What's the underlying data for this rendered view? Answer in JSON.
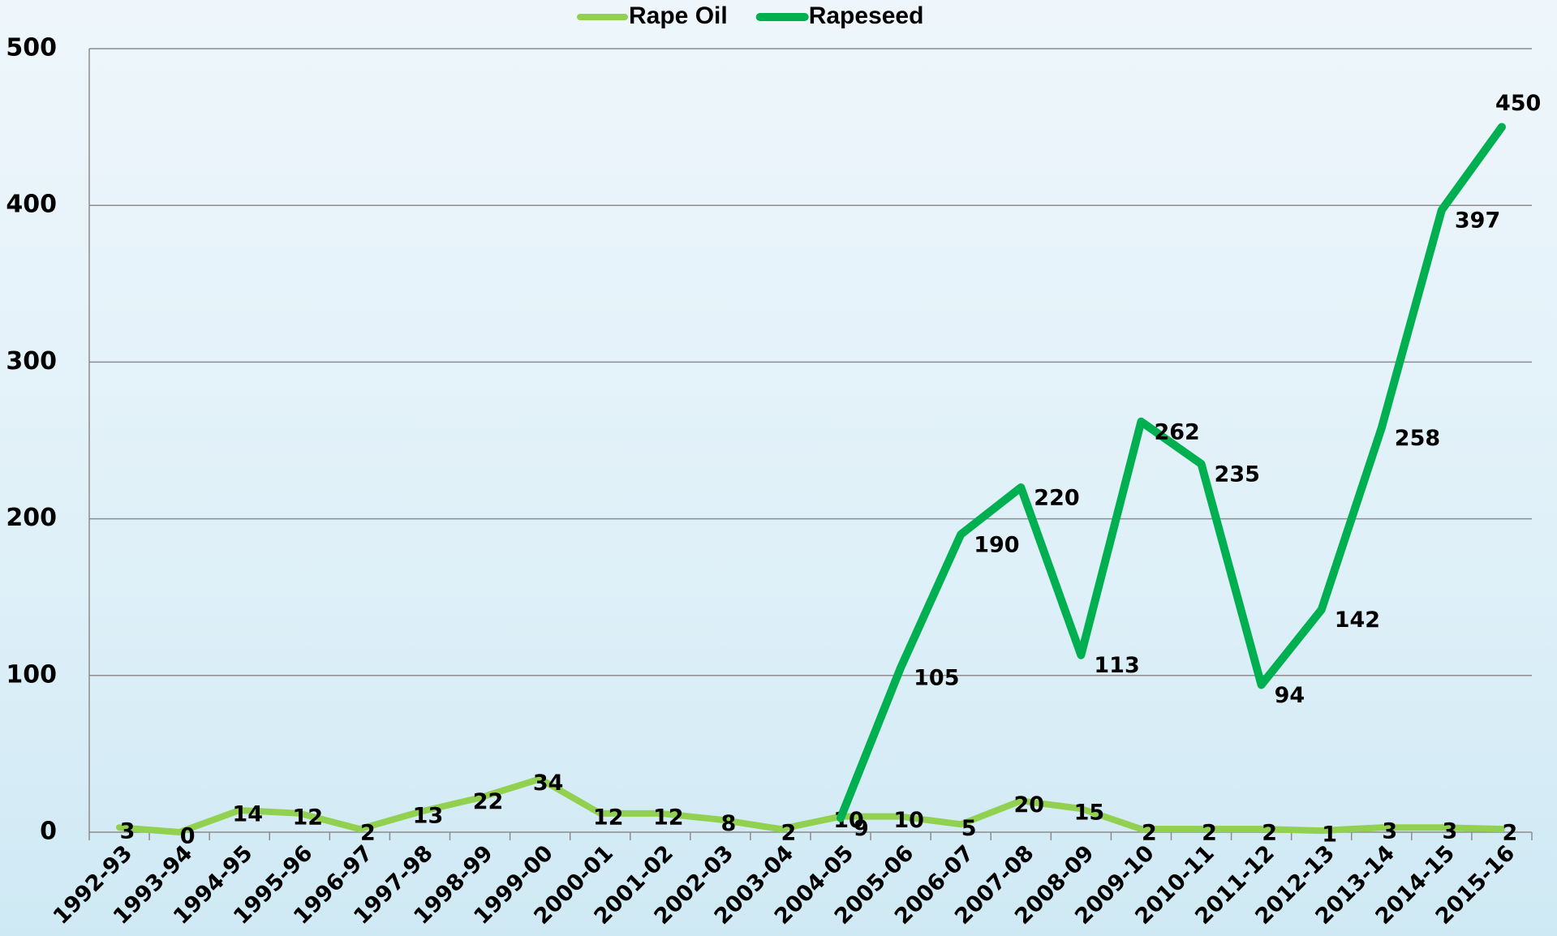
{
  "chart_data": {
    "type": "line",
    "categories": [
      "1992-93",
      "1993-94",
      "1994-95",
      "1995-96",
      "1996-97",
      "1997-98",
      "1998-99",
      "1999-00",
      "2000-01",
      "2001-02",
      "2002-03",
      "2003-04",
      "2004-05",
      "2005-06",
      "2006-07",
      "2007-08",
      "2008-09",
      "2009-10",
      "2010-11",
      "2011-12",
      "2012-13",
      "2013-14",
      "2014-15",
      "2015-16"
    ],
    "series": [
      {
        "name": "Rape Oil",
        "color": "#92d050",
        "values": [
          3,
          0,
          14,
          12,
          2,
          13,
          22,
          34,
          12,
          12,
          8,
          2,
          10,
          10,
          5,
          20,
          15,
          2,
          2,
          2,
          1,
          3,
          3,
          2
        ]
      },
      {
        "name": "Rapeseed",
        "color": "#00b050",
        "last_label_color": "#ff0000",
        "values": [
          null,
          null,
          null,
          null,
          null,
          null,
          null,
          null,
          null,
          null,
          null,
          null,
          9,
          105,
          190,
          220,
          113,
          262,
          235,
          94,
          142,
          258,
          397,
          450
        ]
      }
    ],
    "ylim": [
      0,
      500
    ],
    "yticks": [
      0,
      100,
      200,
      300,
      400,
      500
    ],
    "grid": true,
    "legend": "top"
  }
}
